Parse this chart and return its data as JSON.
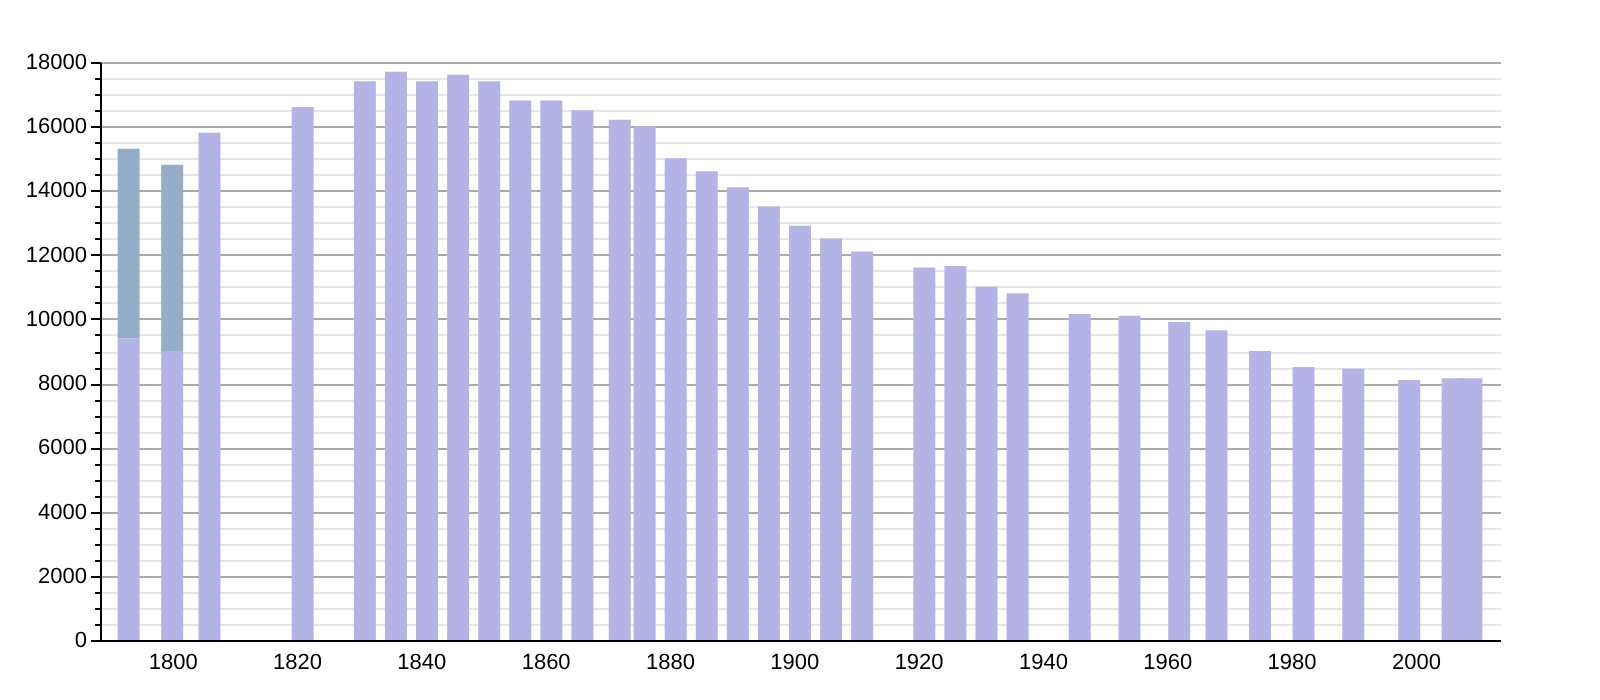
{
  "chart_data": {
    "type": "bar",
    "stacked": true,
    "x": [
      1793,
      1800,
      1806,
      1821,
      1831,
      1836,
      1841,
      1846,
      1851,
      1856,
      1861,
      1866,
      1872,
      1876,
      1881,
      1886,
      1891,
      1896,
      1901,
      1906,
      1911,
      1921,
      1926,
      1931,
      1936,
      1946,
      1954,
      1962,
      1968,
      1975,
      1982,
      1990,
      1999,
      2006,
      2009
    ],
    "series": [
      {
        "color": "#b3b3e6",
        "values": [
          9400,
          9000,
          15800,
          16600,
          17400,
          17700,
          17400,
          17600,
          17400,
          16800,
          16800,
          16500,
          16200,
          16000,
          15000,
          14600,
          14100,
          13500,
          12900,
          12500,
          12100,
          11600,
          11650,
          11000,
          10800,
          10150,
          10100,
          9900,
          9650,
          9000,
          8500,
          8450,
          8100,
          8150,
          8150
        ]
      },
      {
        "color": "#94aec8",
        "values": [
          5900,
          5800,
          null,
          null,
          null,
          null,
          null,
          null,
          null,
          null,
          null,
          null,
          null,
          null,
          null,
          null,
          null,
          null,
          null,
          null,
          null,
          null,
          null,
          null,
          null,
          null,
          null,
          null,
          null,
          null,
          null,
          null,
          null,
          null,
          null
        ]
      }
    ],
    "xlim": [
      1790,
      2012
    ],
    "xticks": [
      1800,
      1820,
      1840,
      1860,
      1880,
      1900,
      1920,
      1940,
      1960,
      1980,
      2000
    ],
    "ylim": [
      0,
      18000
    ],
    "yticks": [
      0,
      {
        "value": 500,
        "label": null
      },
      {
        "value": 1000,
        "label": null
      },
      {
        "value": 1500,
        "label": null
      },
      2000,
      {
        "value": 2500,
        "label": null
      },
      {
        "value": 3000,
        "label": null
      },
      {
        "value": 3500,
        "label": null
      },
      4000,
      {
        "value": 4500,
        "label": null
      },
      {
        "value": 5000,
        "label": null
      },
      {
        "value": 5500,
        "label": null
      },
      6000,
      {
        "value": 6500,
        "label": null
      },
      {
        "value": 7000,
        "label": null
      },
      {
        "value": 7500,
        "label": null
      },
      8000,
      {
        "value": 8500,
        "label": null
      },
      {
        "value": 9000,
        "label": null
      },
      {
        "value": 9500,
        "label": null
      },
      10000,
      {
        "value": 10500,
        "label": null
      },
      {
        "value": 11000,
        "label": null
      },
      {
        "value": 11500,
        "label": null
      },
      12000,
      {
        "value": 12500,
        "label": null
      },
      {
        "value": 13000,
        "label": null
      },
      {
        "value": 13500,
        "label": null
      },
      14000,
      {
        "value": 14500,
        "label": null
      },
      {
        "value": 15000,
        "label": null
      },
      {
        "value": 15500,
        "label": null
      },
      16000,
      {
        "value": 16500,
        "label": null
      },
      {
        "value": 17000,
        "label": null
      },
      {
        "value": 17500,
        "label": null
      },
      18000
    ],
    "grid": "y",
    "legend": false
  }
}
